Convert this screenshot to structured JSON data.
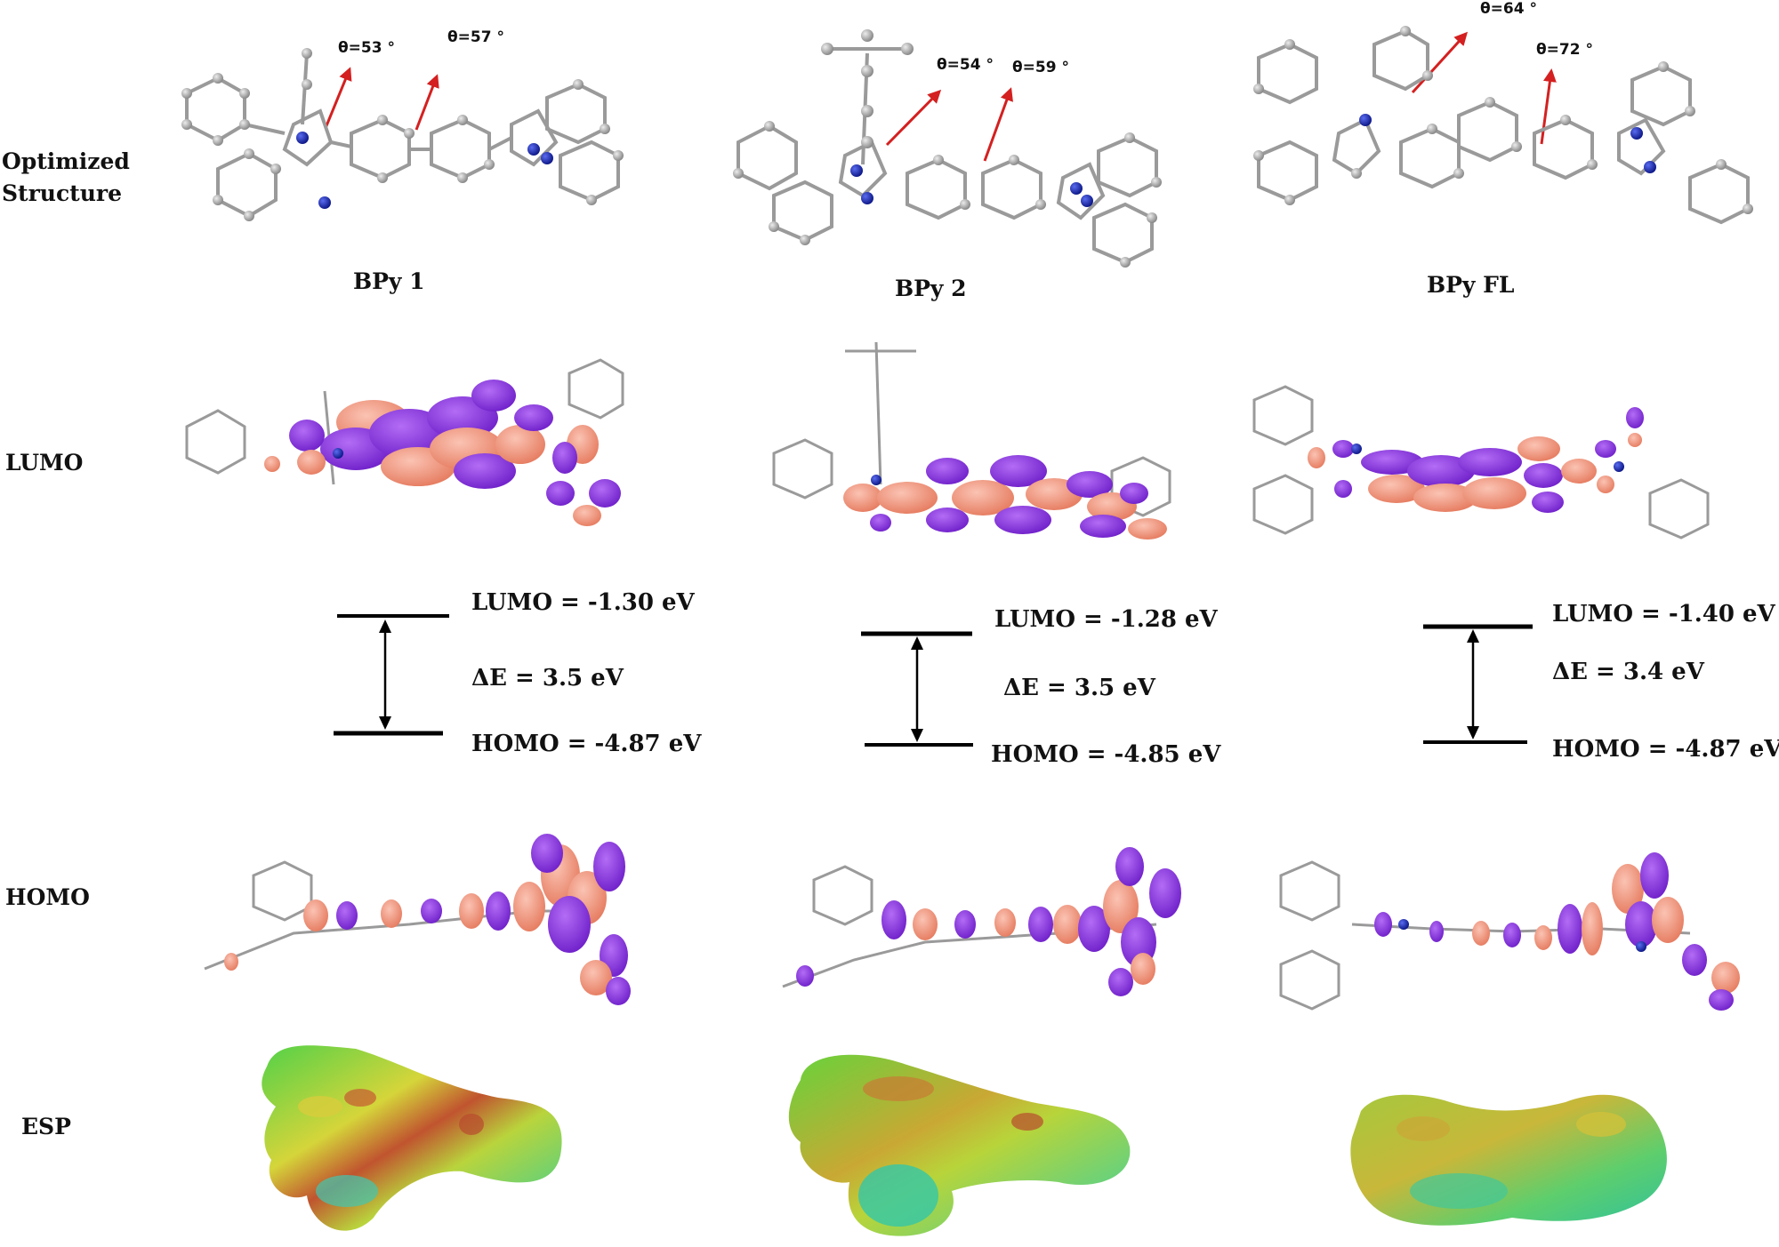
{
  "row_labels": {
    "optimized_line1": "Optimized",
    "optimized_line2": "Structure",
    "lumo": "LUMO",
    "homo": "HOMO",
    "esp": "ESP"
  },
  "molecules": [
    {
      "name": "BPy 1",
      "angles": [
        "θ=53 °",
        "θ=57 °"
      ],
      "lumo_energy": "LUMO = -1.30 eV",
      "gap": "ΔE = 3.5 eV",
      "homo_energy": "HOMO = -4.87 eV"
    },
    {
      "name": "BPy 2",
      "angles": [
        "θ=54 °",
        "θ=59 °"
      ],
      "lumo_energy": "LUMO = -1.28 eV",
      "gap": "ΔE = 3.5 eV",
      "homo_energy": "HOMO = -4.85 eV"
    },
    {
      "name": "BPy FL",
      "angles": [
        "θ=64 °",
        "θ=72 °"
      ],
      "lumo_energy": "LUMO = -1.40 eV",
      "gap": "ΔE = 3.4 eV",
      "homo_energy": "HOMO = -4.87 eV"
    }
  ],
  "colors": {
    "arrow": "#d42020",
    "atom_carbon": "#a8a8a8",
    "atom_nitrogen": "#1b2bb0",
    "orbital_positive": "#f08c74",
    "orbital_negative": "#8a2be2",
    "esp_green": "#3bbd3b",
    "esp_yellow": "#d8d83a",
    "esp_red": "#b8442e"
  }
}
